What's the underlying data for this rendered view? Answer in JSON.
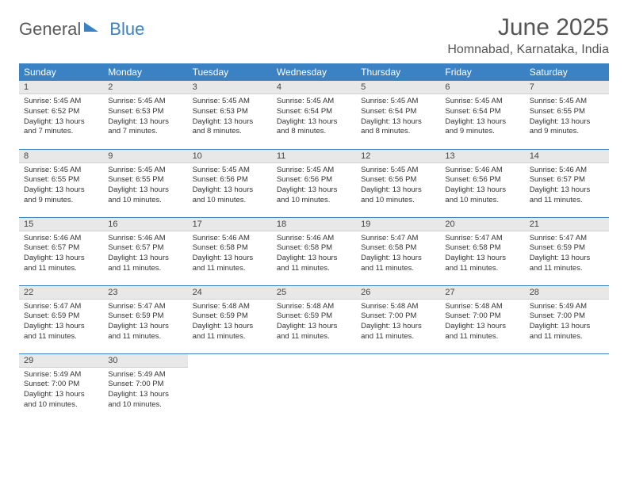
{
  "brand": {
    "word1": "General",
    "word2": "Blue"
  },
  "title": "June 2025",
  "location": "Homnabad, Karnataka, India",
  "colors": {
    "accent": "#3b82c4",
    "dayHeader": "#e8e8e8",
    "bg": "#ffffff"
  },
  "weekdays": [
    "Sunday",
    "Monday",
    "Tuesday",
    "Wednesday",
    "Thursday",
    "Friday",
    "Saturday"
  ],
  "weeks": [
    [
      {
        "n": "1",
        "sr": "5:45 AM",
        "ss": "6:52 PM",
        "dl": "13 hours and 7 minutes."
      },
      {
        "n": "2",
        "sr": "5:45 AM",
        "ss": "6:53 PM",
        "dl": "13 hours and 7 minutes."
      },
      {
        "n": "3",
        "sr": "5:45 AM",
        "ss": "6:53 PM",
        "dl": "13 hours and 8 minutes."
      },
      {
        "n": "4",
        "sr": "5:45 AM",
        "ss": "6:54 PM",
        "dl": "13 hours and 8 minutes."
      },
      {
        "n": "5",
        "sr": "5:45 AM",
        "ss": "6:54 PM",
        "dl": "13 hours and 8 minutes."
      },
      {
        "n": "6",
        "sr": "5:45 AM",
        "ss": "6:54 PM",
        "dl": "13 hours and 9 minutes."
      },
      {
        "n": "7",
        "sr": "5:45 AM",
        "ss": "6:55 PM",
        "dl": "13 hours and 9 minutes."
      }
    ],
    [
      {
        "n": "8",
        "sr": "5:45 AM",
        "ss": "6:55 PM",
        "dl": "13 hours and 9 minutes."
      },
      {
        "n": "9",
        "sr": "5:45 AM",
        "ss": "6:55 PM",
        "dl": "13 hours and 10 minutes."
      },
      {
        "n": "10",
        "sr": "5:45 AM",
        "ss": "6:56 PM",
        "dl": "13 hours and 10 minutes."
      },
      {
        "n": "11",
        "sr": "5:45 AM",
        "ss": "6:56 PM",
        "dl": "13 hours and 10 minutes."
      },
      {
        "n": "12",
        "sr": "5:45 AM",
        "ss": "6:56 PM",
        "dl": "13 hours and 10 minutes."
      },
      {
        "n": "13",
        "sr": "5:46 AM",
        "ss": "6:56 PM",
        "dl": "13 hours and 10 minutes."
      },
      {
        "n": "14",
        "sr": "5:46 AM",
        "ss": "6:57 PM",
        "dl": "13 hours and 11 minutes."
      }
    ],
    [
      {
        "n": "15",
        "sr": "5:46 AM",
        "ss": "6:57 PM",
        "dl": "13 hours and 11 minutes."
      },
      {
        "n": "16",
        "sr": "5:46 AM",
        "ss": "6:57 PM",
        "dl": "13 hours and 11 minutes."
      },
      {
        "n": "17",
        "sr": "5:46 AM",
        "ss": "6:58 PM",
        "dl": "13 hours and 11 minutes."
      },
      {
        "n": "18",
        "sr": "5:46 AM",
        "ss": "6:58 PM",
        "dl": "13 hours and 11 minutes."
      },
      {
        "n": "19",
        "sr": "5:47 AM",
        "ss": "6:58 PM",
        "dl": "13 hours and 11 minutes."
      },
      {
        "n": "20",
        "sr": "5:47 AM",
        "ss": "6:58 PM",
        "dl": "13 hours and 11 minutes."
      },
      {
        "n": "21",
        "sr": "5:47 AM",
        "ss": "6:59 PM",
        "dl": "13 hours and 11 minutes."
      }
    ],
    [
      {
        "n": "22",
        "sr": "5:47 AM",
        "ss": "6:59 PM",
        "dl": "13 hours and 11 minutes."
      },
      {
        "n": "23",
        "sr": "5:47 AM",
        "ss": "6:59 PM",
        "dl": "13 hours and 11 minutes."
      },
      {
        "n": "24",
        "sr": "5:48 AM",
        "ss": "6:59 PM",
        "dl": "13 hours and 11 minutes."
      },
      {
        "n": "25",
        "sr": "5:48 AM",
        "ss": "6:59 PM",
        "dl": "13 hours and 11 minutes."
      },
      {
        "n": "26",
        "sr": "5:48 AM",
        "ss": "7:00 PM",
        "dl": "13 hours and 11 minutes."
      },
      {
        "n": "27",
        "sr": "5:48 AM",
        "ss": "7:00 PM",
        "dl": "13 hours and 11 minutes."
      },
      {
        "n": "28",
        "sr": "5:49 AM",
        "ss": "7:00 PM",
        "dl": "13 hours and 11 minutes."
      }
    ],
    [
      {
        "n": "29",
        "sr": "5:49 AM",
        "ss": "7:00 PM",
        "dl": "13 hours and 10 minutes."
      },
      {
        "n": "30",
        "sr": "5:49 AM",
        "ss": "7:00 PM",
        "dl": "13 hours and 10 minutes."
      },
      null,
      null,
      null,
      null,
      null
    ]
  ],
  "labels": {
    "sunrise": "Sunrise: ",
    "sunset": "Sunset: ",
    "daylight": "Daylight: "
  }
}
